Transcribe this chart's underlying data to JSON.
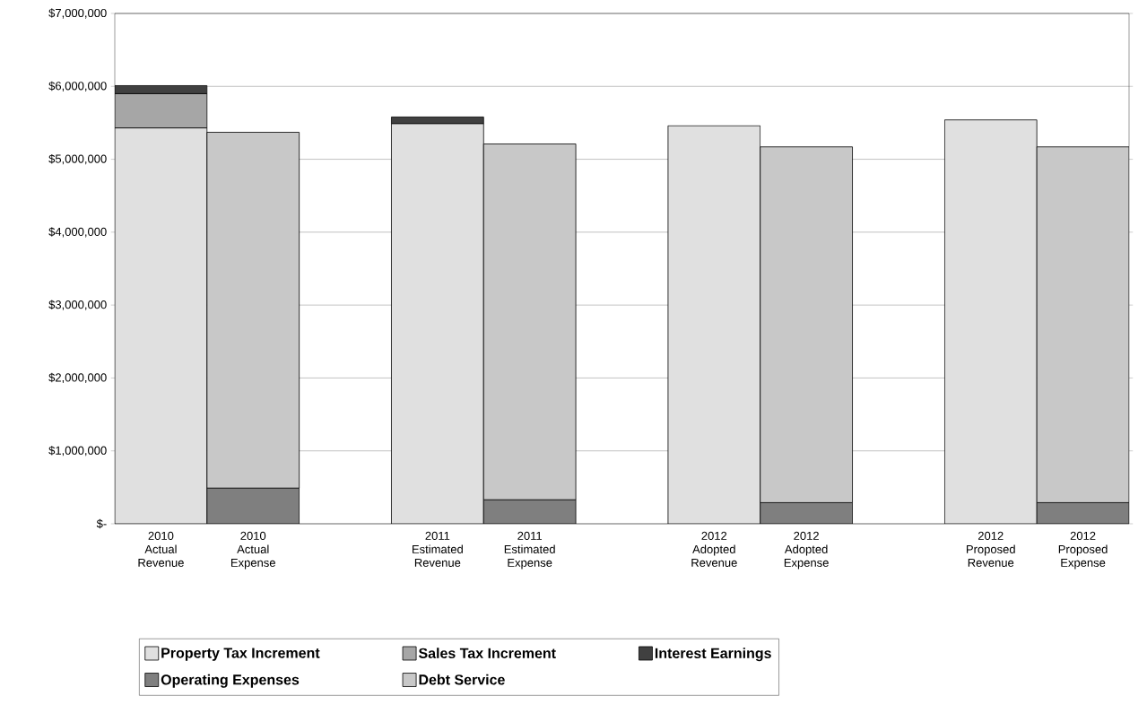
{
  "chart_data": {
    "type": "bar",
    "stacked": true,
    "categories": [
      "2010 Actual Revenue",
      "2010 Actual Expense",
      null,
      "2011 Estimated Revenue",
      "2011 Estimated Expense",
      null,
      "2012 Adopted Revenue",
      "2012 Adopted Expense",
      null,
      "2012 Proposed Revenue",
      "2012 Proposed Expense"
    ],
    "series": [
      {
        "name": "Property Tax Increment",
        "color": "#e0e0e0",
        "values": [
          5430000,
          null,
          null,
          5490000,
          null,
          null,
          5460000,
          null,
          null,
          5540000,
          null
        ]
      },
      {
        "name": "Sales Tax Increment",
        "color": "#a6a6a6",
        "values": [
          470000,
          null,
          null,
          null,
          null,
          null,
          null,
          null,
          null,
          null,
          null
        ]
      },
      {
        "name": "Interest Earnings",
        "color": "#404040",
        "values": [
          110000,
          null,
          null,
          90000,
          null,
          null,
          null,
          null,
          null,
          null,
          null
        ]
      },
      {
        "name": "Operating Expenses",
        "color": "#7f7f7f",
        "values": [
          null,
          490000,
          null,
          null,
          330000,
          null,
          null,
          290000,
          null,
          null,
          290000
        ]
      },
      {
        "name": "Debt Service",
        "color": "#c8c8c8",
        "values": [
          null,
          4880000,
          null,
          null,
          4880000,
          null,
          null,
          4880000,
          null,
          null,
          4880000
        ]
      }
    ],
    "ylim": [
      0,
      7000000
    ],
    "yticks": [
      {
        "value": 0,
        "label": "$-"
      },
      {
        "value": 1000000,
        "label": "$1,000,000"
      },
      {
        "value": 2000000,
        "label": "$2,000,000"
      },
      {
        "value": 3000000,
        "label": "$3,000,000"
      },
      {
        "value": 4000000,
        "label": "$4,000,000"
      },
      {
        "value": 5000000,
        "label": "$5,000,000"
      },
      {
        "value": 6000000,
        "label": "$6,000,000"
      },
      {
        "value": 7000000,
        "label": "$7,000,000"
      }
    ],
    "grid": "y",
    "legend": "bottom"
  }
}
